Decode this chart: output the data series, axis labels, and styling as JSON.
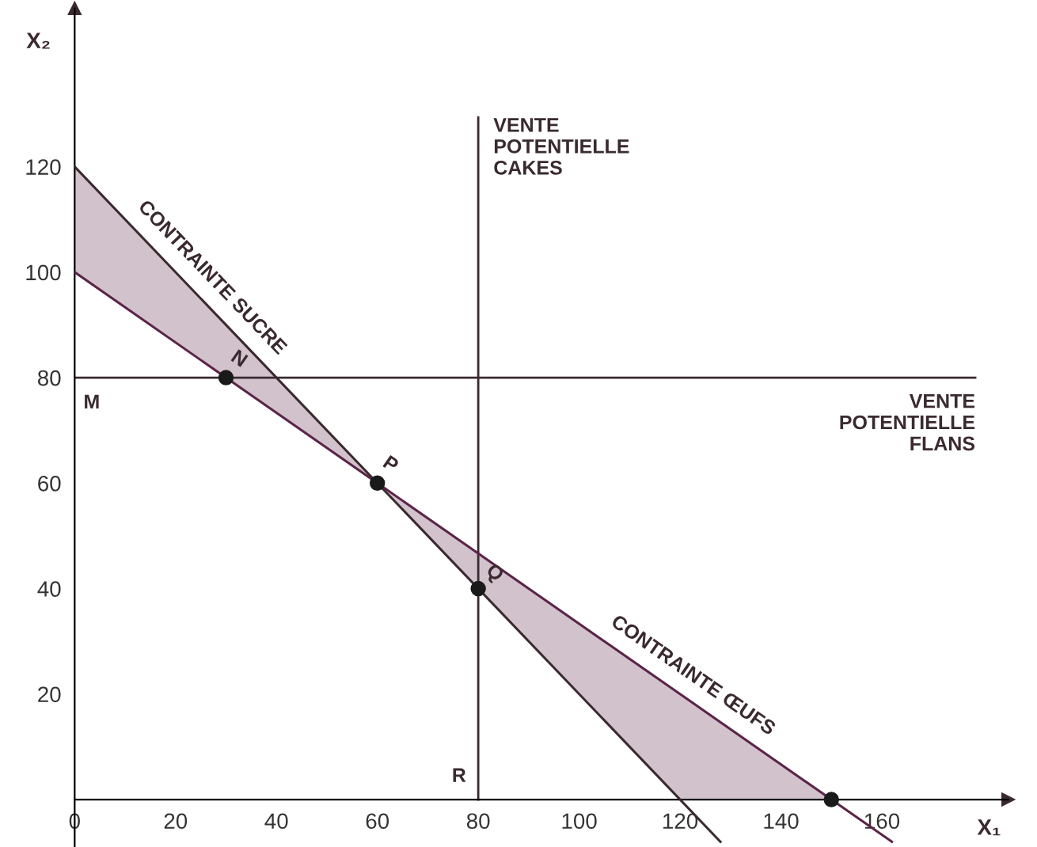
{
  "chart_data": {
    "type": "line",
    "xlabel": "X₁",
    "ylabel": "X₂",
    "xlim": [
      0,
      185
    ],
    "ylim": [
      -9,
      150
    ],
    "xticks": [
      0,
      20,
      40,
      60,
      80,
      100,
      120,
      140,
      160
    ],
    "yticks": [
      20,
      40,
      60,
      80,
      100,
      120
    ],
    "grid": false,
    "series": [
      {
        "color": "#3a2a30",
        "x": [
          0,
          128
        ],
        "values": [
          120,
          -8
        ]
      },
      {
        "color": "#5a2448",
        "x": [
          0,
          60,
          120,
          150,
          162
        ],
        "values": [
          100,
          60,
          20,
          0,
          -8
        ],
        "lower": [
          100,
          60,
          0,
          0,
          null
        ],
        "upper": [
          120,
          60,
          20,
          0,
          null
        ]
      },
      {
        "type": "scatter",
        "color": "#1a1a1a",
        "marker": "circle",
        "x": [
          30,
          60,
          80,
          150
        ],
        "values": [
          80,
          60,
          40,
          0
        ]
      }
    ],
    "ref_lines": [
      {
        "axis": "x",
        "value": 80,
        "label": "VENTE\nPOTENTIELLE\nCAKES",
        "color": "#3a2a30"
      },
      {
        "axis": "y",
        "value": 80,
        "label": "VENTE\nPOTENTIELLE\nFLANS",
        "color": "#3a2a30"
      }
    ],
    "annotations": [
      {
        "text": "CONTRAINTE SUCRE",
        "x": 24,
        "y": 96
      },
      {
        "text": "CONTRAINTE ŒUFS",
        "x": 120,
        "y": 20
      },
      {
        "text": "M",
        "x": 0,
        "y": 80
      },
      {
        "text": "N",
        "x": 30,
        "y": 80
      },
      {
        "text": "P",
        "x": 60,
        "y": 60
      },
      {
        "text": "Q",
        "x": 80,
        "y": 40
      },
      {
        "text": "R",
        "x": 80,
        "y": 0
      }
    ]
  }
}
